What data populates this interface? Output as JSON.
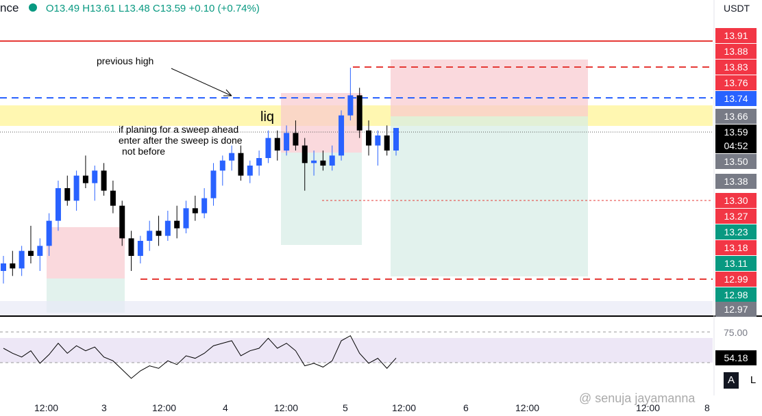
{
  "header": {
    "symbol": "nce",
    "open": "O13.49",
    "high": "H13.61",
    "low": "L13.48",
    "close": "C13.59",
    "change": "+0.10 (+0.74%)"
  },
  "currency": "USDT",
  "annotations": {
    "previous_high": "previous high",
    "liq": "liq",
    "note": [
      "if planing for a sweep ahead",
      "enter after the sweep  is done",
      "not before"
    ]
  },
  "price_labels": [
    {
      "text": "13.91",
      "color": "#f23645"
    },
    {
      "text": "13.88",
      "color": "#f23645"
    },
    {
      "text": "13.83",
      "color": "#f23645"
    },
    {
      "text": "13.76",
      "color": "#f23645"
    },
    {
      "text": "13.74",
      "color": "#2962ff"
    },
    {
      "text": "13.66",
      "color": "#787b86"
    },
    {
      "text": "13.59",
      "color": "#000000"
    },
    {
      "text": "13.50",
      "color": "#787b86"
    },
    {
      "text": "13.38",
      "color": "#787b86"
    },
    {
      "text": "13.30",
      "color": "#f23645"
    },
    {
      "text": "13.27",
      "color": "#f23645"
    },
    {
      "text": "13.23",
      "color": "#089981"
    },
    {
      "text": "13.18",
      "color": "#f23645"
    },
    {
      "text": "13.11",
      "color": "#089981"
    },
    {
      "text": "12.99",
      "color": "#f23645"
    },
    {
      "text": "12.98",
      "color": "#089981"
    },
    {
      "text": "12.97",
      "color": "#787b86"
    }
  ],
  "countdown": "04:52",
  "chart_data": {
    "type": "candlestick",
    "ylim": [
      12.84,
      14.1
    ],
    "up_color": "#2962ff",
    "down_color": "#000000",
    "open": [
      13.02,
      13.05,
      13.03,
      13.1,
      13.08,
      13.12,
      13.22,
      13.35,
      13.3,
      13.4,
      13.37,
      13.42,
      13.34,
      13.28,
      13.15,
      13.08,
      13.14,
      13.18,
      13.16,
      13.22,
      13.19,
      13.27,
      13.25,
      13.31,
      13.42,
      13.46,
      13.49,
      13.4,
      13.44,
      13.47,
      13.55,
      13.5,
      13.57,
      13.52,
      13.45,
      13.46,
      13.44,
      13.48,
      13.64,
      13.72,
      13.58,
      13.52,
      13.56,
      13.5
    ],
    "high": [
      13.08,
      13.1,
      13.12,
      13.2,
      13.15,
      13.25,
      13.38,
      13.4,
      13.42,
      13.48,
      13.44,
      13.45,
      13.38,
      13.3,
      13.18,
      13.16,
      13.22,
      13.24,
      13.26,
      13.28,
      13.3,
      13.32,
      13.35,
      13.45,
      13.48,
      13.52,
      13.52,
      13.46,
      13.5,
      13.58,
      13.58,
      13.6,
      13.62,
      13.55,
      13.5,
      13.5,
      13.52,
      13.66,
      13.83,
      13.75,
      13.62,
      13.58,
      13.6,
      13.59
    ],
    "low": [
      12.97,
      13.0,
      13.0,
      13.05,
      13.02,
      13.08,
      13.18,
      13.28,
      13.26,
      13.35,
      13.3,
      13.32,
      13.25,
      13.12,
      13.02,
      13.05,
      13.1,
      13.12,
      13.14,
      13.15,
      13.17,
      13.22,
      13.23,
      13.28,
      13.36,
      13.42,
      13.38,
      13.37,
      13.4,
      13.45,
      13.46,
      13.48,
      13.5,
      13.34,
      13.4,
      13.42,
      13.42,
      13.46,
      13.62,
      13.55,
      13.48,
      13.44,
      13.48,
      13.48
    ],
    "close": [
      13.05,
      13.03,
      13.1,
      13.08,
      13.12,
      13.22,
      13.35,
      13.3,
      13.4,
      13.37,
      13.42,
      13.34,
      13.28,
      13.15,
      13.08,
      13.14,
      13.18,
      13.16,
      13.22,
      13.19,
      13.27,
      13.25,
      13.31,
      13.42,
      13.46,
      13.49,
      13.4,
      13.44,
      13.47,
      13.55,
      13.5,
      13.57,
      13.52,
      13.45,
      13.46,
      13.44,
      13.48,
      13.64,
      13.72,
      13.58,
      13.52,
      13.56,
      13.5,
      13.59
    ],
    "rsi": {
      "values": [
        62,
        58,
        55,
        60,
        50,
        57,
        66,
        58,
        64,
        60,
        63,
        55,
        52,
        45,
        38,
        44,
        48,
        46,
        52,
        49,
        56,
        54,
        58,
        64,
        66,
        68,
        56,
        60,
        62,
        70,
        62,
        66,
        60,
        48,
        50,
        47,
        52,
        68,
        72,
        58,
        50,
        54,
        46,
        54.18
      ],
      "color": "#000000",
      "ylim": [
        26,
        86
      ],
      "yticks": [
        {
          "value": 75,
          "label": "75.00"
        }
      ],
      "last_label": "54.18"
    }
  },
  "time_axis": [
    "12:00",
    "3",
    "12:00",
    "4",
    "12:00",
    "5",
    "12:00",
    "6",
    "12:00",
    "12:00",
    "8"
  ],
  "buttons": [
    "A",
    "L"
  ],
  "watermark": "@ senuja jayamanna"
}
